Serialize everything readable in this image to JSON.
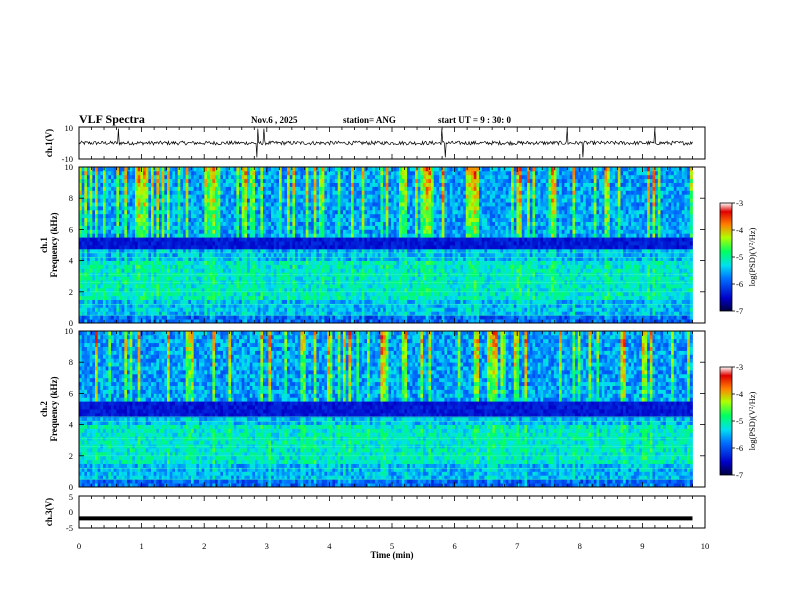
{
  "header": {
    "title": "VLF Spectra",
    "date": "Nov.6 , 2025",
    "station": "station= ANG",
    "start": "start UT = 9 : 30: 0"
  },
  "chart_data": [
    {
      "type": "line",
      "panel": "ch1_waveform",
      "ylabel": "ch.1(V)",
      "ylim": [
        -10,
        10
      ],
      "y_tick_labels": [
        "10",
        "-10"
      ],
      "xlim": [
        0,
        10
      ],
      "baseline": 0,
      "spikes_min": [
        0.63,
        2.85,
        2.95,
        5.8,
        5.85,
        7.8,
        8.05,
        9.2
      ]
    },
    {
      "type": "heatmap",
      "panel": "ch1_spectrogram",
      "ylabel_line1": "ch.1",
      "ylabel_line2": "Frequency (kHz)",
      "ylim": [
        0,
        10
      ],
      "y_tick_labels": [
        "0",
        "2",
        "4",
        "6",
        "8",
        "10"
      ],
      "xlim": [
        0,
        10
      ],
      "data_end_min": 9.8,
      "band_gap_khz": [
        4.7,
        5.4
      ],
      "colorbar": {
        "label": "log(PSD)(V²/Hz)",
        "range": [
          -7,
          -3
        ],
        "tick_labels": [
          "-3",
          "-4",
          "-5",
          "-6",
          "-7"
        ]
      }
    },
    {
      "type": "heatmap",
      "panel": "ch2_spectrogram",
      "ylabel_line1": "ch.2",
      "ylabel_line2": "Frequency (kHz)",
      "ylim": [
        0,
        10
      ],
      "y_tick_labels": [
        "0",
        "2",
        "4",
        "6",
        "8",
        "10"
      ],
      "xlim": [
        0,
        10
      ],
      "data_end_min": 9.8,
      "band_gap_khz": [
        4.6,
        5.4
      ],
      "colorbar": {
        "label": "log(PSD)(V²/Hz)",
        "range": [
          -7,
          -3
        ],
        "tick_labels": [
          "-3",
          "-4",
          "-5",
          "-6",
          "-7"
        ]
      }
    },
    {
      "type": "line",
      "panel": "ch3_waveform",
      "ylabel": "ch.3(V)",
      "ylim": [
        -5,
        5
      ],
      "y_tick_labels": [
        "5",
        "0",
        "-5"
      ],
      "xlim": [
        0,
        10
      ],
      "level": -2
    }
  ],
  "xaxis": {
    "label": "Time (min)",
    "tick_labels": [
      "0",
      "1",
      "2",
      "3",
      "4",
      "5",
      "6",
      "7",
      "8",
      "9",
      "10"
    ]
  }
}
